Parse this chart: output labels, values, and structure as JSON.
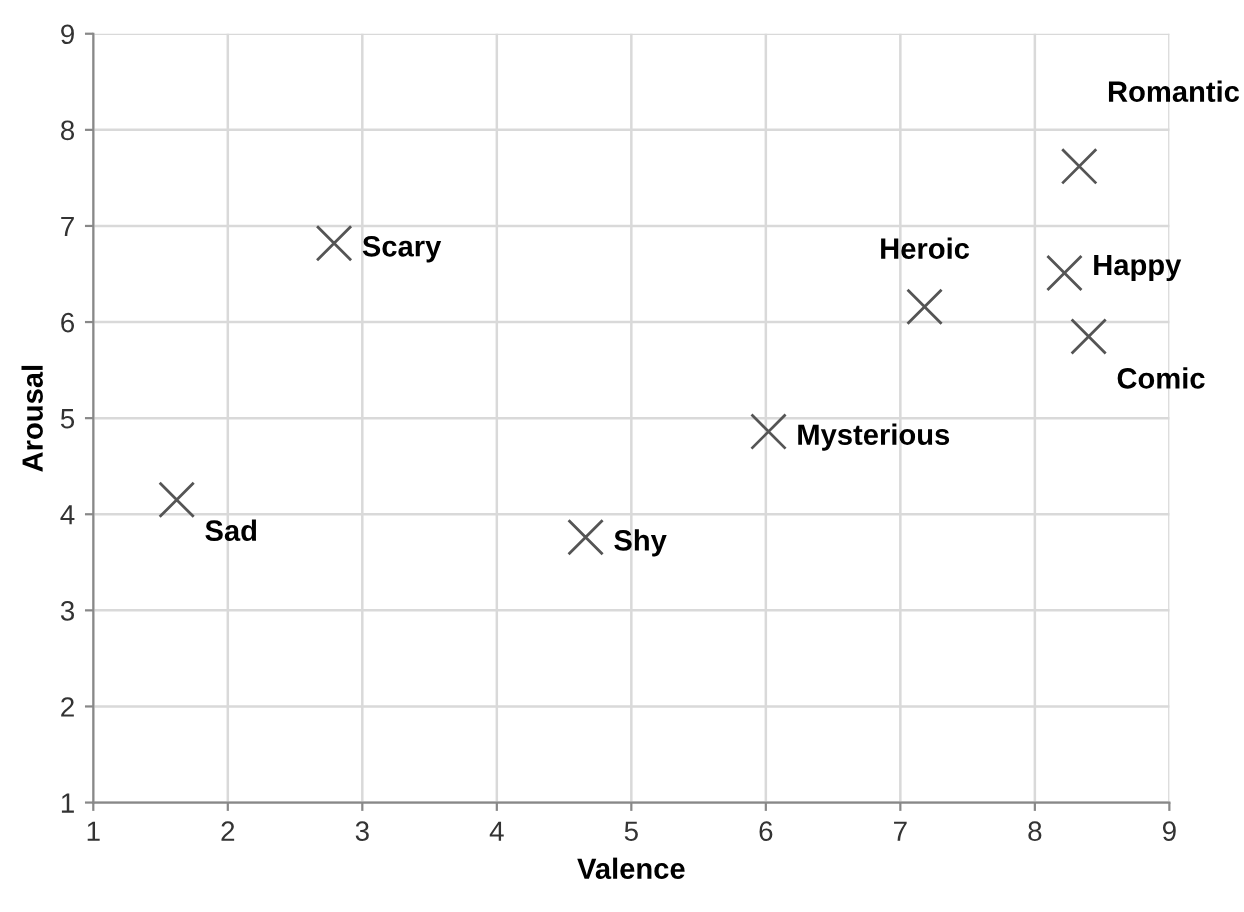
{
  "chart_data": {
    "type": "scatter",
    "xlabel": "Valence",
    "ylabel": "Arousal",
    "x": [
      1.62,
      2.79,
      4.66,
      6.02,
      7.18,
      8.33,
      8.22,
      8.4
    ],
    "series": [
      {
        "color": "#555555",
        "values": [
          4.15,
          6.82,
          3.76,
          4.86,
          6.16,
          7.62,
          6.51,
          5.85
        ]
      }
    ],
    "annotations": [
      {
        "text": "Sad",
        "x": 1.62,
        "y": 4.15
      },
      {
        "text": "Scary",
        "x": 2.79,
        "y": 6.82
      },
      {
        "text": "Shy",
        "x": 4.66,
        "y": 3.76
      },
      {
        "text": "Mysterious",
        "x": 6.02,
        "y": 4.86
      },
      {
        "text": "Heroic",
        "x": 7.18,
        "y": 6.16
      },
      {
        "text": "Romantic",
        "x": 8.33,
        "y": 7.62
      },
      {
        "text": "Happy",
        "x": 8.22,
        "y": 6.51
      },
      {
        "text": "Comic",
        "x": 8.4,
        "y": 5.85
      }
    ],
    "xlim": [
      1,
      9
    ],
    "ylim": [
      1,
      9
    ],
    "xticks": [
      1,
      2,
      3,
      4,
      5,
      6,
      7,
      8,
      9
    ],
    "yticks": [
      1,
      2,
      3,
      4,
      5,
      6,
      7,
      8,
      9
    ],
    "grid": true,
    "marker": "cross"
  }
}
